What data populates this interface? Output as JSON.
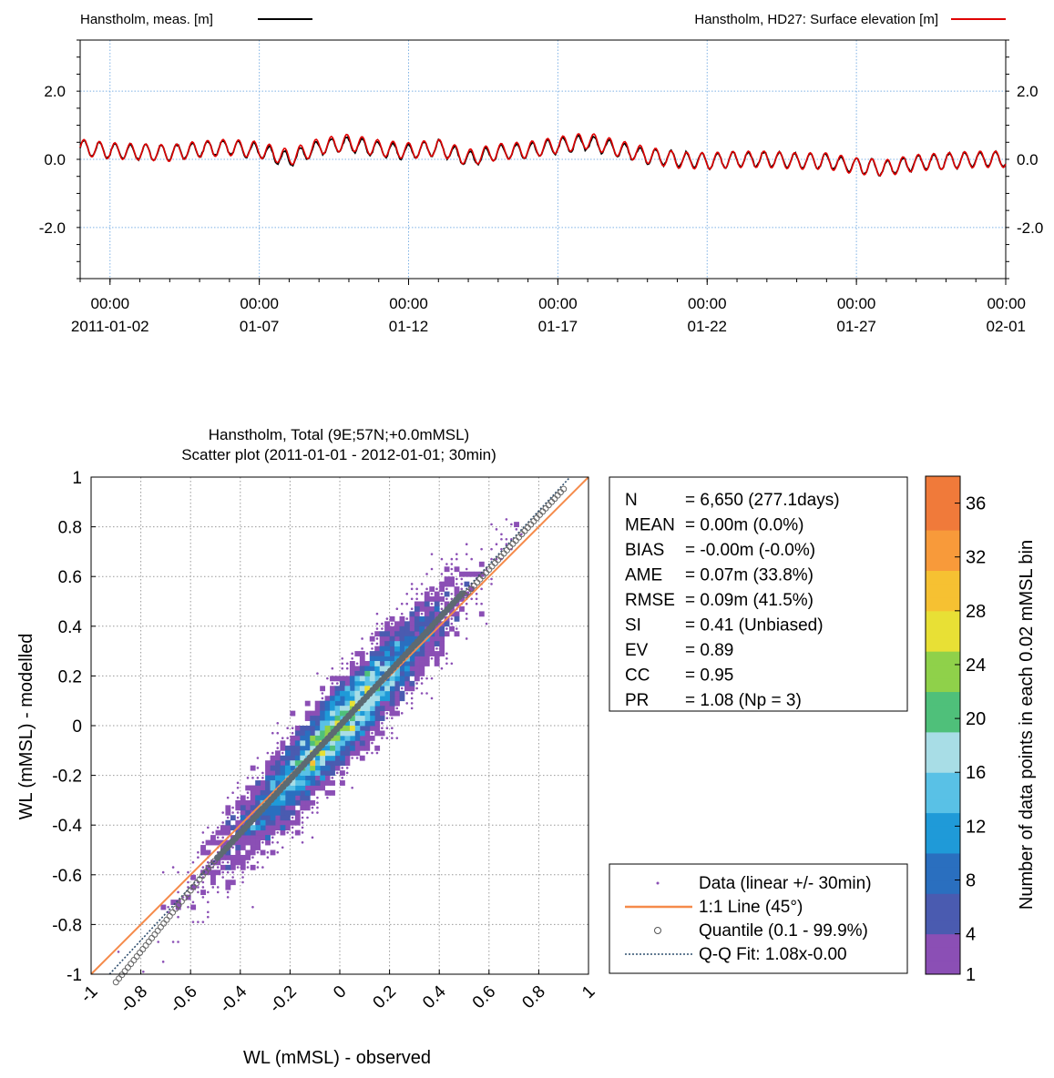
{
  "chart_data": [
    {
      "type": "line",
      "legend": [
        {
          "label": "Hanstholm, meas. [m]",
          "color": "#000000",
          "placement": "top-left"
        },
        {
          "label": "Hanstholm, HD27: Surface elevation [m]",
          "color": "#e00000",
          "placement": "top-right"
        }
      ],
      "x_tick_labels": [
        {
          "time": "00:00",
          "date": "2011-01-02"
        },
        {
          "time": "00:00",
          "date": "01-07"
        },
        {
          "time": "00:00",
          "date": "01-12"
        },
        {
          "time": "00:00",
          "date": "01-17"
        },
        {
          "time": "00:00",
          "date": "01-22"
        },
        {
          "time": "00:00",
          "date": "01-27"
        },
        {
          "time": "00:00",
          "date": "02-01"
        }
      ],
      "x_tick_dates": [
        "2011-01-02",
        "2011-01-07",
        "2011-01-12",
        "2011-01-17",
        "2011-01-22",
        "2011-01-27",
        "2011-02-01"
      ],
      "xlim": [
        "2011-01-01",
        "2011-02-01"
      ],
      "y_ticks": [
        2.0,
        0.0,
        -2.0
      ],
      "y_tick_labels": [
        "2.0",
        "0.0",
        "-2.0"
      ],
      "ylim": [
        -3.5,
        3.5
      ],
      "grid": true,
      "series": [
        {
          "name": "Hanstholm, meas. [m]",
          "color": "#000000",
          "daily_mean": [
            0.35,
            0.25,
            0.22,
            0.18,
            0.3,
            0.35,
            0.25,
            0.0,
            0.35,
            0.45,
            0.3,
            0.22,
            0.35,
            0.0,
            0.2,
            0.25,
            0.4,
            0.5,
            0.3,
            0.1,
            0.0,
            -0.05,
            0.0,
            0.0,
            -0.05,
            -0.05,
            -0.2,
            -0.25,
            -0.1,
            -0.05,
            0.0
          ]
        },
        {
          "name": "Hanstholm, HD27: Surface elevation [m]",
          "color": "#e00000",
          "daily_mean": [
            0.35,
            0.25,
            0.22,
            0.18,
            0.3,
            0.35,
            0.28,
            0.05,
            0.38,
            0.5,
            0.33,
            0.25,
            0.35,
            0.05,
            0.22,
            0.28,
            0.42,
            0.55,
            0.33,
            0.12,
            -0.02,
            -0.05,
            0.0,
            0.0,
            -0.05,
            -0.05,
            -0.2,
            -0.25,
            -0.1,
            -0.05,
            0.0
          ]
        }
      ],
      "tide_amplitude_m": 0.22
    },
    {
      "type": "scatter",
      "title": "Hanstholm, Total (9E;57N;+0.0mMSL)",
      "subtitle": "Scatter plot  (2011-01-01 - 2012-01-01; 30min)",
      "xlabel": "WL (mMSL) - observed",
      "ylabel": "WL (mMSL) - modelled",
      "xlim": [
        -1,
        1
      ],
      "ylim": [
        -1,
        1
      ],
      "x_ticks": [
        -1,
        -0.8,
        -0.6,
        -0.4,
        -0.2,
        0,
        0.2,
        0.4,
        0.6,
        0.8,
        1
      ],
      "x_tick_labels": [
        "-1",
        "-0.8",
        "-0.6",
        "-0.4",
        "-0.2",
        "0",
        "0.2",
        "0.4",
        "0.6",
        "0.8",
        "1"
      ],
      "y_ticks": [
        -1,
        -0.8,
        -0.6,
        -0.4,
        -0.2,
        0,
        0.2,
        0.4,
        0.6,
        0.8,
        1
      ],
      "y_tick_labels": [
        "-1",
        "-0.8",
        "-0.6",
        "-0.4",
        "-0.2",
        "0",
        "0.2",
        "0.4",
        "0.6",
        "0.8",
        "1"
      ],
      "grid": true,
      "stats": [
        {
          "key": "N",
          "value": "= 6,650 (277.1days)"
        },
        {
          "key": "MEAN",
          "value": "= 0.00m (0.0%)"
        },
        {
          "key": "BIAS",
          "value": "= -0.00m (-0.0%)"
        },
        {
          "key": "AME",
          "value": "= 0.07m (33.8%)"
        },
        {
          "key": "RMSE",
          "value": "= 0.09m (41.5%)"
        },
        {
          "key": "SI",
          "value": "= 0.41 (Unbiased)"
        },
        {
          "key": "EV",
          "value": "= 0.89"
        },
        {
          "key": "CC",
          "value": "= 0.95"
        },
        {
          "key": "PR",
          "value": "= 1.08 (Np = 3)"
        }
      ],
      "legend": [
        {
          "label": "Data (linear +/- 30min)",
          "symbol": "dot",
          "color": "#8b4fb5"
        },
        {
          "label": "1:1 Line (45°)",
          "symbol": "line",
          "color": "#f58a4a"
        },
        {
          "label": "Quantile (0.1 - 99.9%)",
          "symbol": "circle",
          "color": "#555555"
        },
        {
          "label": "Q-Q Fit: 1.08x-0.00",
          "symbol": "dashed",
          "color": "#2f4f6f"
        }
      ],
      "legend_placement": "bottom-right",
      "n_points": 6650,
      "qq_fit": {
        "slope": 1.08,
        "intercept": 0.0
      },
      "quantile_range": [
        -0.9,
        0.9
      ],
      "bin_size": 0.02,
      "colorbar": {
        "label": "Number of data points in each 0.02 mMSL bin",
        "ticks": [
          1,
          4,
          8,
          12,
          16,
          20,
          24,
          28,
          32,
          36
        ],
        "tick_labels": [
          "1",
          "4",
          "8",
          "12",
          "16",
          "20",
          "24",
          "28",
          "32",
          "36"
        ],
        "range": [
          1,
          38
        ],
        "colors": [
          "#8b4fb5",
          "#4a5bb0",
          "#2a6fbf",
          "#1f9ad8",
          "#59c1e6",
          "#a8dde6",
          "#4fc07a",
          "#8fd14a",
          "#e8e035",
          "#f6c132",
          "#f89a3a",
          "#f07a3a"
        ]
      }
    }
  ]
}
